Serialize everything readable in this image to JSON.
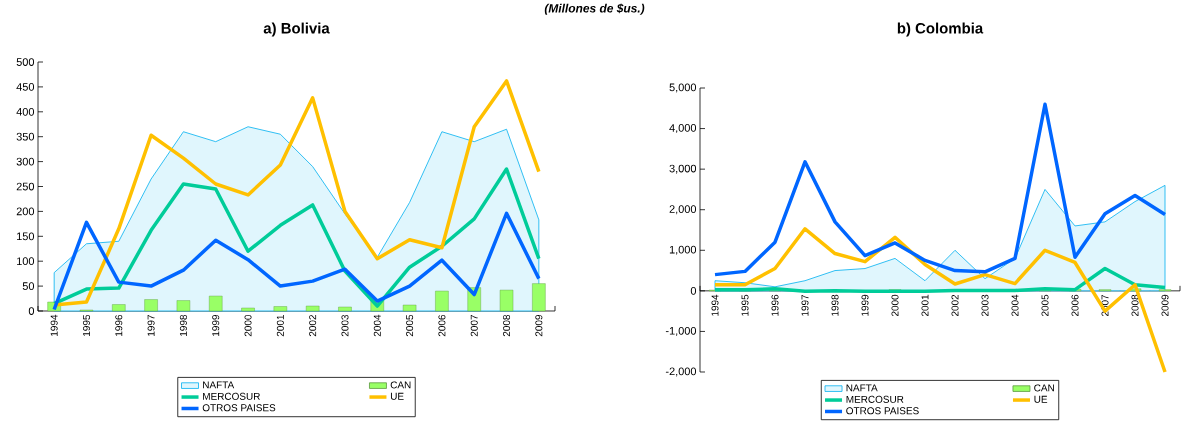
{
  "chart_data": [
    {
      "type": "line",
      "title": "a) Bolivia",
      "annotations": [
        "(Millones de $us.)"
      ],
      "categories": [
        "1994",
        "1995",
        "1996",
        "1997",
        "1998",
        "1999",
        "2000",
        "2001",
        "2002",
        "2003",
        "2004",
        "2005",
        "2006",
        "2007",
        "2008",
        "2009"
      ],
      "ylim": [
        0,
        500
      ],
      "yticks": [
        0,
        50,
        100,
        150,
        200,
        250,
        300,
        350,
        400,
        450,
        500
      ],
      "legend": "bottom",
      "series": [
        {
          "name": "NAFTA",
          "type": "area",
          "color": "#00b0f0",
          "values": [
            77,
            135,
            140,
            265,
            360,
            340,
            370,
            355,
            290,
            195,
            108,
            218,
            360,
            340,
            365,
            183
          ]
        },
        {
          "name": "CAN",
          "type": "bar",
          "color": "#99ff66",
          "values": [
            18,
            2,
            13,
            23,
            21,
            30,
            6,
            9,
            10,
            8,
            22,
            12,
            40,
            47,
            42,
            55
          ]
        },
        {
          "name": "MERCOSUR",
          "color": "#00cc99",
          "values": [
            15,
            44,
            46,
            162,
            255,
            245,
            120,
            172,
            213,
            80,
            10,
            88,
            130,
            185,
            285,
            105
          ]
        },
        {
          "name": "UE",
          "color": "#ffc000",
          "values": [
            12,
            18,
            165,
            353,
            307,
            255,
            233,
            293,
            428,
            200,
            105,
            143,
            127,
            370,
            462,
            280
          ]
        },
        {
          "name": "OTROS PAISES",
          "color": "#0066ff",
          "values": [
            3,
            178,
            58,
            50,
            82,
            142,
            103,
            50,
            60,
            84,
            20,
            50,
            102,
            33,
            196,
            65
          ]
        }
      ]
    },
    {
      "type": "line",
      "title": "b) Colombia",
      "categories": [
        "1994",
        "1995",
        "1996",
        "1997",
        "1998",
        "1999",
        "2000",
        "2001",
        "2002",
        "2003",
        "2004",
        "2005",
        "2006",
        "2007",
        "2008",
        "2009"
      ],
      "ylim": [
        -2000,
        5000
      ],
      "yticks": [
        {
          "value": -2000,
          "label": "-2,000"
        },
        {
          "value": -1000,
          "label": "-1,000"
        },
        0,
        {
          "value": 1000,
          "label": "1,000"
        },
        {
          "value": 2000,
          "label": "2,000"
        },
        {
          "value": 3000,
          "label": "3,000"
        },
        {
          "value": 4000,
          "label": "4,000"
        },
        {
          "value": 5000,
          "label": "5,000"
        }
      ],
      "legend": "bottom",
      "series": [
        {
          "name": "NAFTA",
          "type": "area",
          "color": "#00b0f0",
          "values": [
            250,
            200,
            100,
            250,
            500,
            550,
            800,
            250,
            1000,
            300,
            800,
            2500,
            1600,
            1700,
            2200,
            2600
          ]
        },
        {
          "name": "CAN",
          "type": "bar",
          "color": "#99ff66",
          "values": [
            20,
            20,
            30,
            null,
            null,
            null,
            30,
            null,
            30,
            30,
            30,
            40,
            40,
            30,
            50,
            30
          ]
        },
        {
          "name": "MERCOSUR",
          "color": "#00cc99",
          "values": [
            30,
            30,
            50,
            -10,
            0,
            -10,
            -10,
            -10,
            10,
            10,
            10,
            50,
            30,
            550,
            150,
            80
          ]
        },
        {
          "name": "UE",
          "color": "#ffc000",
          "values": [
            150,
            150,
            550,
            1530,
            920,
            720,
            1320,
            650,
            170,
            400,
            180,
            1000,
            700,
            -500,
            150,
            -2000
          ]
        },
        {
          "name": "OTROS PAISES",
          "color": "#0066ff",
          "values": [
            400,
            480,
            1200,
            3180,
            1700,
            870,
            1180,
            750,
            500,
            470,
            800,
            4600,
            830,
            1900,
            2350,
            1880
          ]
        }
      ]
    }
  ]
}
